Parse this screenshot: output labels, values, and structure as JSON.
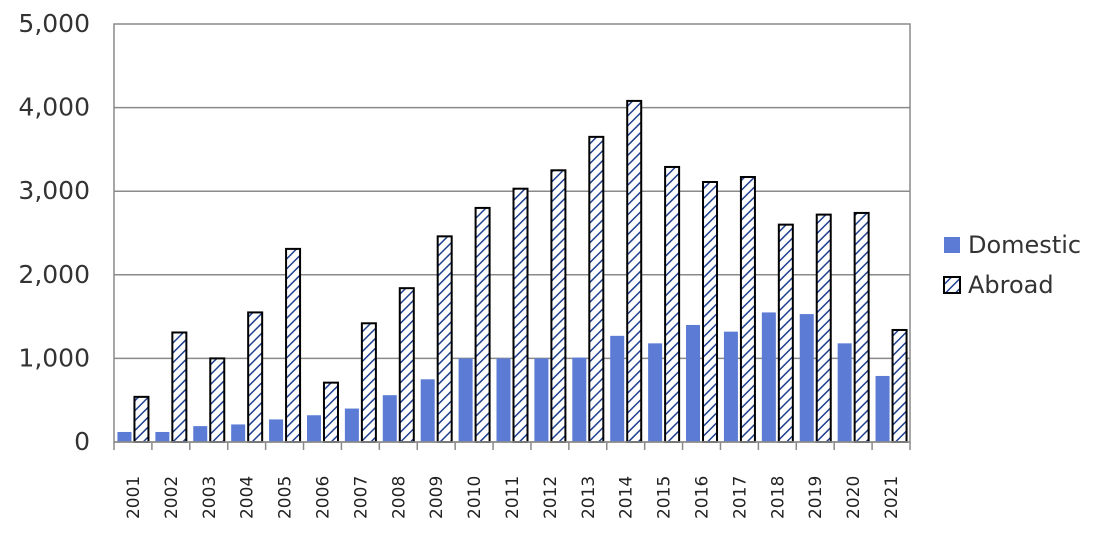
{
  "chart_data": {
    "type": "bar",
    "title": "",
    "xlabel": "",
    "ylabel": "",
    "ylim": [
      0,
      5000
    ],
    "yticks": [
      "0",
      "1,000",
      "2,000",
      "3,000",
      "4,000",
      "5,000"
    ],
    "grid": true,
    "legend_position": "right",
    "categories": [
      "2001",
      "2002",
      "2003",
      "2004",
      "2005",
      "2006",
      "2007",
      "2008",
      "2009",
      "2010",
      "2011",
      "2012",
      "2013",
      "2014",
      "2015",
      "2016",
      "2017",
      "2018",
      "2019",
      "2020",
      "2021"
    ],
    "series": [
      {
        "name": "Domestic",
        "color": "#5b7bd5",
        "style": "solid",
        "values": [
          120,
          120,
          190,
          210,
          270,
          320,
          400,
          560,
          750,
          1000,
          1000,
          1000,
          1010,
          1270,
          1180,
          1400,
          1320,
          1550,
          1530,
          1180,
          790
        ]
      },
      {
        "name": "Abroad",
        "color": "#1f3f8f",
        "style": "hatched",
        "values": [
          540,
          1310,
          1000,
          1550,
          2310,
          710,
          1420,
          1840,
          2460,
          2800,
          3030,
          3250,
          3650,
          4080,
          3290,
          3110,
          3170,
          2600,
          2720,
          2740,
          1340
        ]
      }
    ]
  }
}
